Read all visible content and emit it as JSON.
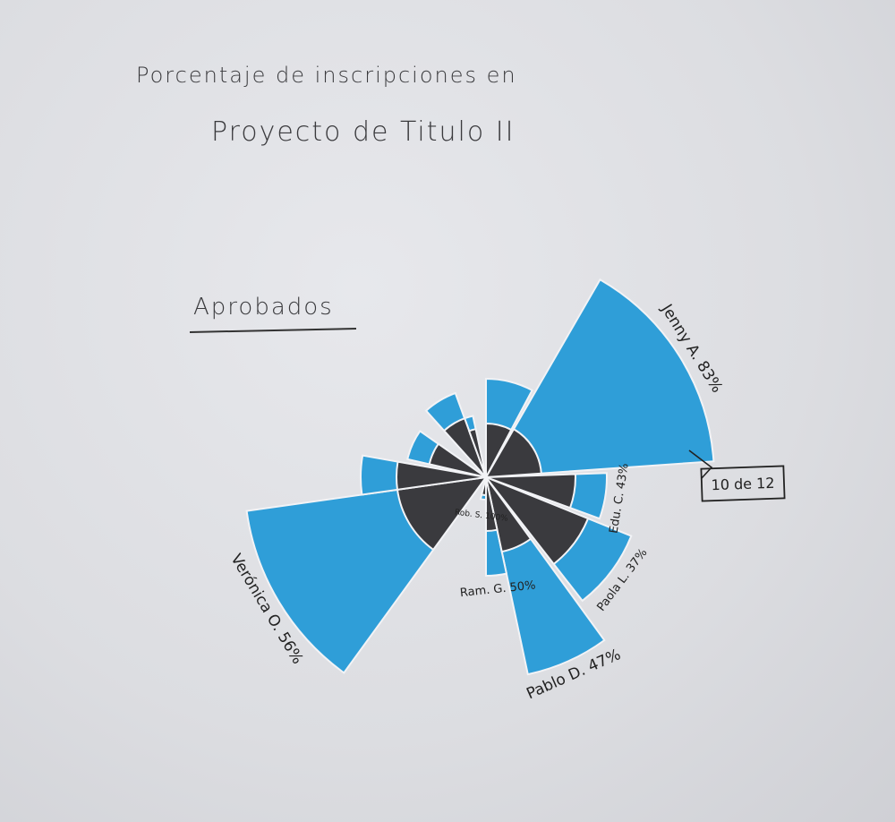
{
  "title": {
    "line1": "Porcentaje de inscripciones en",
    "line2": "Proyecto de Titulo II"
  },
  "section_label": "Aprobados",
  "colors": {
    "outer": "#2f9ed8",
    "inner": "#3a3a3e",
    "ink": "#222222"
  },
  "chart_data": {
    "type": "polar-area",
    "title": "Porcentaje de inscripciones en Proyecto de Titulo II",
    "subtitle": "Aprobados",
    "series": [
      {
        "name": "Inscripciones"
      },
      {
        "name": "Aprobados"
      }
    ],
    "sectors": [
      {
        "label": "Jenny A.",
        "percent_label": "83%",
        "approved": 83,
        "start_deg": 30,
        "end_deg": 86,
        "outer": 255,
        "inner": 62
      },
      {
        "label": "Edu. C.",
        "percent_label": "43%",
        "approved": 43,
        "start_deg": 88,
        "end_deg": 110,
        "outer": 135,
        "inner": 100
      },
      {
        "label": "Paola L.",
        "percent_label": "37%",
        "approved": 37,
        "start_deg": 112,
        "end_deg": 142,
        "outer": 175,
        "inner": 123
      },
      {
        "label": "Pablo D.",
        "percent_label": "47%",
        "approved": 47,
        "start_deg": 144,
        "end_deg": 168,
        "outer": 225,
        "inner": 85
      },
      {
        "label": "Ram. G.",
        "percent_label": "50%",
        "approved": 50,
        "start_deg": 168,
        "end_deg": 180,
        "outer": 110,
        "inner": 60
      },
      {
        "label": "Rob. S.",
        "percent_label": "100%",
        "approved": 100,
        "start_deg": 180,
        "end_deg": 194,
        "outer": 25,
        "inner": 20
      },
      {
        "label": "Verónica O.",
        "percent_label": "56%",
        "approved": 56,
        "start_deg": 216,
        "end_deg": 262,
        "outer": 270,
        "inner": 100
      },
      {
        "label": "",
        "percent_label": "",
        "approved": null,
        "start_deg": 262,
        "end_deg": 280,
        "outer": 140,
        "inner": 100
      },
      {
        "label": "",
        "percent_label": "",
        "approved": null,
        "start_deg": 283,
        "end_deg": 305,
        "outer": 90,
        "inner": 65
      },
      {
        "label": "",
        "percent_label": "",
        "approved": null,
        "start_deg": 318,
        "end_deg": 340,
        "outer": 100,
        "inner": 70
      },
      {
        "label": "",
        "percent_label": "",
        "approved": null,
        "start_deg": 340,
        "end_deg": 348,
        "outer": 70,
        "inner": 55
      },
      {
        "label": "",
        "percent_label": "",
        "approved": null,
        "start_deg": 0,
        "end_deg": 28,
        "outer": 110,
        "inner": 60
      }
    ],
    "annotation": "10 de 12",
    "grid": false,
    "legend": "none"
  }
}
